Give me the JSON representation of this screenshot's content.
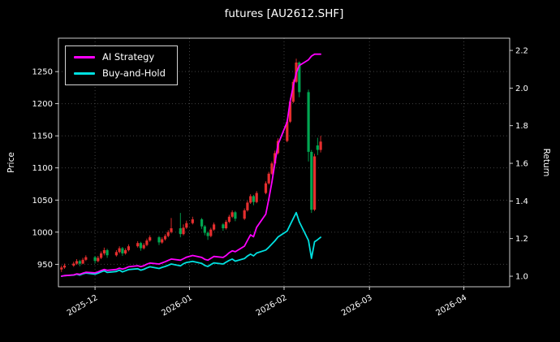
{
  "title": "futures [AU2612.SHF]",
  "legend": [
    {
      "label": "AI Strategy",
      "color": "#ff00ff"
    },
    {
      "label": "Buy-and-Hold",
      "color": "#00e0e0"
    }
  ],
  "colors": {
    "background": "#000000",
    "text": "#ffffff",
    "grid": "#4a4a4a",
    "spine": "#ffffff",
    "candle_up": "#e62e2e",
    "candle_down": "#00a651",
    "ai_line": "#ff00ff",
    "bh_line": "#00e0e0"
  },
  "axes": {
    "x": {
      "start": "2025-11-19",
      "end": "2026-04-16",
      "ticks": [
        {
          "date": "2025-12-01",
          "label": "2025-12"
        },
        {
          "date": "2026-01-01",
          "label": "2026-01"
        },
        {
          "date": "2026-02-01",
          "label": "2026-02"
        },
        {
          "date": "2026-03-01",
          "label": "2026-03"
        },
        {
          "date": "2026-04-01",
          "label": "2026-04"
        }
      ]
    },
    "y_left": {
      "label": "Price",
      "min": 915,
      "max": 1302,
      "ticks": [
        950,
        1000,
        1050,
        1100,
        1150,
        1200,
        1250
      ]
    },
    "y_right": {
      "label": "Return",
      "min": 0.944,
      "max": 2.265,
      "ticks": [
        1.0,
        1.2,
        1.4,
        1.6,
        1.8,
        2.0,
        2.2
      ]
    }
  },
  "chart_data": {
    "type": "candlestick+line",
    "title": "futures [AU2612.SHF]",
    "xlabel": "",
    "ylabel_left": "Price",
    "ylabel_right": "Return",
    "grid": true,
    "legend_position": "upper-left",
    "dates": [
      "2025-11-20",
      "2025-11-21",
      "2025-11-24",
      "2025-11-25",
      "2025-11-26",
      "2025-11-27",
      "2025-11-28",
      "2025-12-01",
      "2025-12-02",
      "2025-12-03",
      "2025-12-04",
      "2025-12-05",
      "2025-12-08",
      "2025-12-09",
      "2025-12-10",
      "2025-12-11",
      "2025-12-12",
      "2025-12-15",
      "2025-12-16",
      "2025-12-17",
      "2025-12-18",
      "2025-12-19",
      "2025-12-22",
      "2025-12-23",
      "2025-12-24",
      "2025-12-25",
      "2025-12-26",
      "2025-12-29",
      "2025-12-30",
      "2025-12-31",
      "2026-01-02",
      "2026-01-05",
      "2026-01-06",
      "2026-01-07",
      "2026-01-08",
      "2026-01-09",
      "2026-01-12",
      "2026-01-13",
      "2026-01-14",
      "2026-01-15",
      "2026-01-16",
      "2026-01-19",
      "2026-01-20",
      "2026-01-21",
      "2026-01-22",
      "2026-01-23",
      "2026-01-26",
      "2026-01-27",
      "2026-01-28",
      "2026-01-29",
      "2026-01-30",
      "2026-02-02",
      "2026-02-03",
      "2026-02-04",
      "2026-02-05",
      "2026-02-06",
      "2026-02-09",
      "2026-02-10",
      "2026-02-11",
      "2026-02-12",
      "2026-02-13"
    ],
    "ohlc": [
      [
        942,
        948,
        938,
        945
      ],
      [
        945,
        951,
        943,
        948
      ],
      [
        948,
        954,
        946,
        951
      ],
      [
        951,
        958,
        949,
        955
      ],
      [
        955,
        957,
        947,
        951
      ],
      [
        951,
        960,
        950,
        957
      ],
      [
        957,
        964,
        955,
        961
      ],
      [
        961,
        963,
        951,
        955
      ],
      [
        955,
        963,
        953,
        960
      ],
      [
        960,
        970,
        958,
        967
      ],
      [
        967,
        976,
        964,
        972
      ],
      [
        972,
        974,
        960,
        964
      ],
      [
        964,
        972,
        962,
        969
      ],
      [
        969,
        978,
        967,
        975
      ],
      [
        975,
        977,
        963,
        967
      ],
      [
        967,
        975,
        965,
        972
      ],
      [
        972,
        981,
        970,
        978
      ],
      [
        978,
        986,
        976,
        983
      ],
      [
        983,
        985,
        971,
        975
      ],
      [
        975,
        983,
        973,
        980
      ],
      [
        980,
        990,
        978,
        987
      ],
      [
        987,
        995,
        985,
        992
      ],
      [
        992,
        994,
        980,
        984
      ],
      [
        984,
        992,
        982,
        989
      ],
      [
        989,
        997,
        987,
        994
      ],
      [
        994,
        1003,
        992,
        1000
      ],
      [
        1000,
        1022,
        998,
        1006
      ],
      [
        1006,
        1030,
        992,
        997
      ],
      [
        997,
        1012,
        995,
        1007
      ],
      [
        1007,
        1018,
        1005,
        1014
      ],
      [
        1014,
        1024,
        1012,
        1020
      ],
      [
        1020,
        1022,
        1005,
        1009
      ],
      [
        1009,
        1011,
        995,
        999
      ],
      [
        999,
        1001,
        988,
        994
      ],
      [
        994,
        1007,
        992,
        1004
      ],
      [
        1004,
        1015,
        1002,
        1012
      ],
      [
        1012,
        1014,
        1002,
        1006
      ],
      [
        1006,
        1019,
        1004,
        1016
      ],
      [
        1016,
        1027,
        1014,
        1024
      ],
      [
        1024,
        1034,
        1022,
        1031
      ],
      [
        1031,
        1033,
        1017,
        1021
      ],
      [
        1021,
        1037,
        1019,
        1034
      ],
      [
        1034,
        1049,
        1032,
        1046
      ],
      [
        1046,
        1059,
        1044,
        1056
      ],
      [
        1056,
        1058,
        1042,
        1047
      ],
      [
        1047,
        1064,
        1045,
        1061
      ],
      [
        1061,
        1079,
        1059,
        1076
      ],
      [
        1076,
        1094,
        1074,
        1091
      ],
      [
        1091,
        1110,
        1089,
        1107
      ],
      [
        1107,
        1127,
        1105,
        1123
      ],
      [
        1123,
        1146,
        1121,
        1142
      ],
      [
        1142,
        1176,
        1140,
        1172
      ],
      [
        1172,
        1208,
        1170,
        1203
      ],
      [
        1203,
        1238,
        1201,
        1234
      ],
      [
        1234,
        1270,
        1232,
        1264
      ],
      [
        1264,
        1266,
        1210,
        1218
      ],
      [
        1218,
        1222,
        1110,
        1125
      ],
      [
        1125,
        1128,
        1030,
        1035
      ],
      [
        1035,
        1122,
        1033,
        1118
      ],
      [
        1135,
        1147,
        1120,
        1128
      ],
      [
        1128,
        1150,
        1124,
        1141
      ]
    ],
    "series": [
      {
        "name": "AI Strategy",
        "axis": "return",
        "color": "#ff00ff",
        "values": [
          1.0,
          1.003,
          1.007,
          1.012,
          1.01,
          1.016,
          1.021,
          1.018,
          1.023,
          1.03,
          1.036,
          1.031,
          1.036,
          1.043,
          1.038,
          1.043,
          1.05,
          1.056,
          1.051,
          1.056,
          1.064,
          1.07,
          1.065,
          1.071,
          1.077,
          1.084,
          1.091,
          1.085,
          1.093,
          1.101,
          1.11,
          1.1,
          1.09,
          1.085,
          1.095,
          1.105,
          1.1,
          1.11,
          1.125,
          1.135,
          1.13,
          1.16,
          1.19,
          1.22,
          1.21,
          1.26,
          1.33,
          1.41,
          1.5,
          1.6,
          1.7,
          1.82,
          1.93,
          2.01,
          2.08,
          2.12,
          2.15,
          2.17,
          2.18,
          2.18,
          2.18
        ]
      },
      {
        "name": "Buy-and-Hold",
        "axis": "return",
        "color": "#00e0e0",
        "values": [
          1.0,
          1.003,
          1.006,
          1.011,
          1.006,
          1.013,
          1.017,
          1.011,
          1.016,
          1.023,
          1.029,
          1.02,
          1.025,
          1.032,
          1.023,
          1.029,
          1.035,
          1.04,
          1.032,
          1.037,
          1.044,
          1.05,
          1.041,
          1.047,
          1.052,
          1.058,
          1.065,
          1.055,
          1.066,
          1.073,
          1.079,
          1.068,
          1.057,
          1.052,
          1.062,
          1.071,
          1.065,
          1.075,
          1.084,
          1.091,
          1.08,
          1.094,
          1.107,
          1.117,
          1.108,
          1.123,
          1.139,
          1.154,
          1.171,
          1.188,
          1.208,
          1.24,
          1.273,
          1.306,
          1.338,
          1.289,
          1.19,
          1.095,
          1.183,
          1.194,
          1.207
        ]
      }
    ]
  }
}
